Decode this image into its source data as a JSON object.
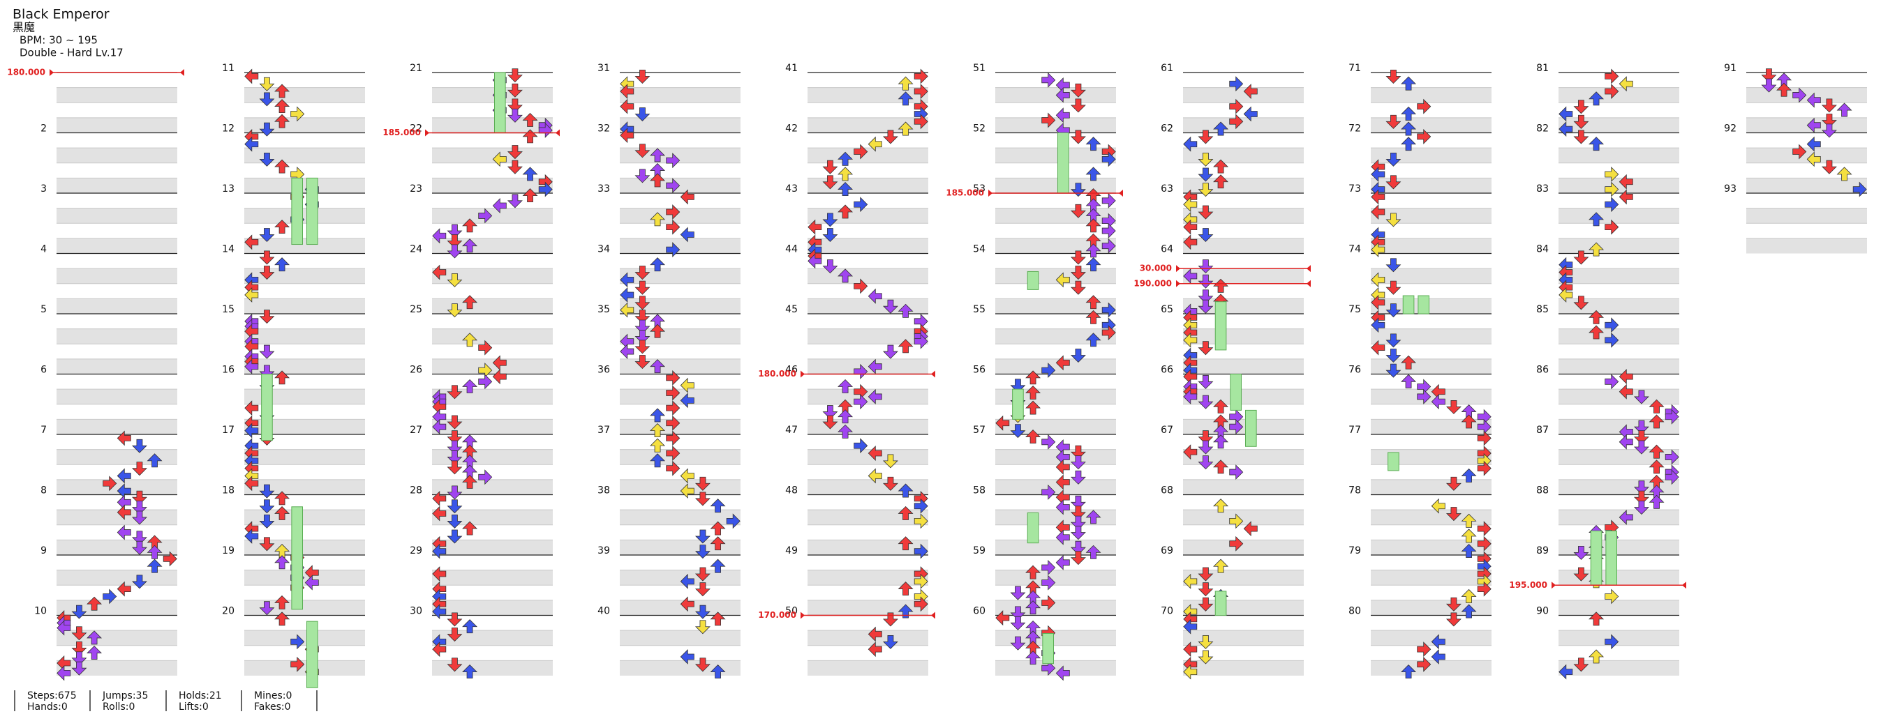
{
  "header": {
    "title": "Black Emperor",
    "subtitle": "黒魔",
    "bpm": "BPM: 30 ~ 195",
    "difficulty": "Double - Hard Lv.17"
  },
  "measure_labels": [
    2,
    3,
    4,
    5,
    6,
    7,
    8,
    9,
    10,
    11,
    12,
    13,
    14,
    15,
    16,
    17,
    18,
    19,
    20,
    21,
    22,
    23,
    24,
    25,
    26,
    27,
    28,
    29,
    30,
    31,
    32,
    33,
    34,
    35,
    36,
    37,
    38,
    39,
    40,
    41,
    42,
    43,
    44,
    45,
    46,
    47,
    48,
    49,
    50,
    51,
    52,
    53,
    54,
    55,
    56,
    57,
    58,
    59,
    60,
    61,
    62,
    63,
    64,
    65,
    66,
    67,
    68,
    69,
    70,
    71,
    72,
    73,
    74,
    75,
    76,
    77,
    78,
    79,
    80,
    81,
    82,
    83,
    84,
    85,
    86,
    87,
    88,
    89,
    90,
    91,
    92,
    93
  ],
  "bpm_changes": [
    "180.000",
    "185.000",
    "180.000",
    "170.000",
    "185.000",
    "30.000",
    "190.000",
    "195.000"
  ],
  "stats": [
    [
      "Steps:675",
      "Hands:0"
    ],
    [
      "Jumps:35",
      "Rolls:0"
    ],
    [
      "Holds:21",
      "Lifts:0"
    ],
    [
      "Mines:0",
      "Fakes:0"
    ]
  ]
}
